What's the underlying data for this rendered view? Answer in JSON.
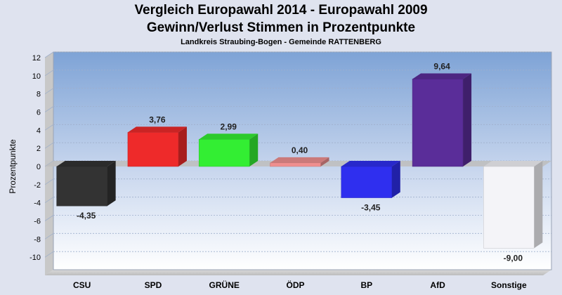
{
  "chart_data": {
    "type": "bar",
    "title": "Vergleich Europawahl 2014 - Europawahl 2009",
    "subtitle": "Gewinn/Verlust Stimmen in Prozentpunkte",
    "caption": "Landkreis Straubing-Bogen - Gemeinde RATTENBERG",
    "ylabel": "Prozentpunkte",
    "xlabel": "",
    "ylim": [
      -12,
      12
    ],
    "yticks": [
      12,
      10,
      8,
      6,
      4,
      2,
      0,
      -2,
      -4,
      -6,
      -8,
      -10
    ],
    "grid": true,
    "categories": [
      "CSU",
      "SPD",
      "GRÜNE",
      "ÖDP",
      "BP",
      "AfD",
      "Sonstige"
    ],
    "values": [
      -4.35,
      3.76,
      2.99,
      0.4,
      -3.45,
      9.64,
      -9.0
    ],
    "value_labels": [
      "-4,35",
      "3,76",
      "2,99",
      "0,40",
      "-3,45",
      "9,64",
      "-9,00"
    ],
    "colors": [
      "#333333",
      "#ee2a2a",
      "#33ee33",
      "#ef8f8f",
      "#2f2fef",
      "#5a2d99",
      "#f4f4f8"
    ]
  }
}
